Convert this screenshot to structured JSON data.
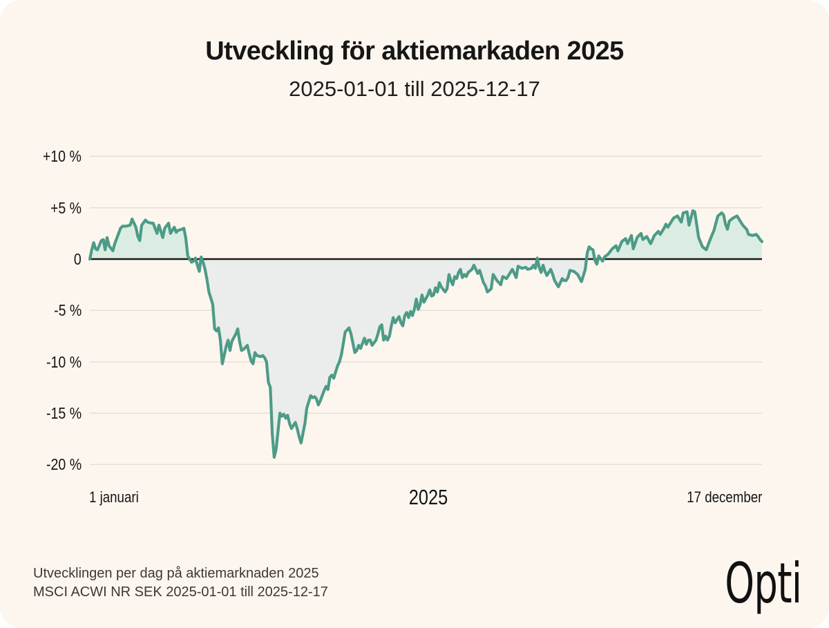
{
  "header": {
    "title": "Utveckling för aktiemarkaden 2025",
    "subtitle": "2025-01-01 till 2025-12-17"
  },
  "footer": {
    "caption_line1": "Utvecklingen per dag på aktiemarknaden 2025",
    "caption_line2": "MSCI ACWI NR SEK 2025-01-01 till 2025-12-17",
    "logo_text": "Opti"
  },
  "chart_data": {
    "type": "line",
    "title": "Utveckling för aktiemarkaden 2025",
    "subtitle": "2025-01-01 till 2025-12-17",
    "x_axis": {
      "labels": {
        "start": "1 januari",
        "center": "2025",
        "end": "17 december"
      },
      "start_date": "2025-01-01",
      "end_date": "2025-12-17",
      "x_unit": "day_index",
      "x_range": [
        0,
        350
      ]
    },
    "y_axis": {
      "unit": "%",
      "ticks": [
        {
          "label": "+10 %",
          "value": 10
        },
        {
          "label": "+5 %",
          "value": 5
        },
        {
          "label": "0",
          "value": 0
        },
        {
          "label": "-5 %",
          "value": -5
        },
        {
          "label": "-10 %",
          "value": -10
        },
        {
          "label": "-15 %",
          "value": -15
        },
        {
          "label": "-20 %",
          "value": -20
        }
      ],
      "ylim": [
        -21.5,
        11.5
      ]
    },
    "grid": "horizontal",
    "legend": "none",
    "colors": {
      "line": "#4d9b87",
      "fill_above_zero": "#d8ece2",
      "fill_below_zero": "#e8eceb",
      "grid": "#e7ddd5",
      "zero_line": "#1a1a1a",
      "card_background": "#fdf6ef",
      "text": "#161616",
      "caption_text": "#3b3835"
    },
    "series": [
      {
        "name": "MSCI ACWI NR SEK",
        "points": [
          [
            0,
            0
          ],
          [
            1,
            0.9
          ],
          [
            2,
            1.6
          ],
          [
            3,
            1
          ],
          [
            4,
            0.9
          ],
          [
            6,
            1.8
          ],
          [
            7,
            1.9
          ],
          [
            8,
            0.9
          ],
          [
            9,
            2.1
          ],
          [
            10,
            1.3
          ],
          [
            12,
            0.8
          ],
          [
            13,
            1.5
          ],
          [
            14,
            2
          ],
          [
            16,
            3
          ],
          [
            17,
            3.2
          ],
          [
            19,
            3.2
          ],
          [
            21,
            3.3
          ],
          [
            22,
            3.9
          ],
          [
            24,
            3.1
          ],
          [
            25,
            2.2
          ],
          [
            26,
            1.8
          ],
          [
            27,
            3.3
          ],
          [
            29,
            3.8
          ],
          [
            30,
            3.6
          ],
          [
            32,
            3.5
          ],
          [
            33,
            3.5
          ],
          [
            35,
            2.5
          ],
          [
            36,
            3.3
          ],
          [
            38,
            2.1
          ],
          [
            39,
            3
          ],
          [
            41,
            3.5
          ],
          [
            42,
            2.5
          ],
          [
            44,
            3.1
          ],
          [
            45,
            2.6
          ],
          [
            46,
            2.8
          ],
          [
            48,
            2.9
          ],
          [
            49,
            3
          ],
          [
            50,
            2
          ],
          [
            51,
            0.3
          ],
          [
            53,
            -0.3
          ],
          [
            54,
            -0.2
          ],
          [
            55,
            0.1
          ],
          [
            56,
            -0.6
          ],
          [
            57,
            -1.2
          ],
          [
            58,
            0.2
          ],
          [
            59,
            -0.3
          ],
          [
            60,
            -1
          ],
          [
            61,
            -2
          ],
          [
            62,
            -3.2
          ],
          [
            64,
            -4.4
          ],
          [
            65,
            -6.8
          ],
          [
            66,
            -7
          ],
          [
            67,
            -6.7
          ],
          [
            68,
            -7.9
          ],
          [
            69,
            -10.2
          ],
          [
            71,
            -8.5
          ],
          [
            72,
            -7.9
          ],
          [
            73,
            -8.9
          ],
          [
            74,
            -8
          ],
          [
            76,
            -7.3
          ],
          [
            77,
            -6.8
          ],
          [
            78,
            -8
          ],
          [
            79,
            -8.9
          ],
          [
            80,
            -8.8
          ],
          [
            82,
            -8.4
          ],
          [
            83,
            -9.2
          ],
          [
            84,
            -9.9
          ],
          [
            85,
            -10.2
          ],
          [
            86,
            -9.1
          ],
          [
            87,
            -9.4
          ],
          [
            89,
            -9.5
          ],
          [
            90,
            -9.4
          ],
          [
            91,
            -9.6
          ],
          [
            92,
            -10
          ],
          [
            93,
            -12
          ],
          [
            94,
            -12.5
          ],
          [
            95,
            -17
          ],
          [
            96,
            -19.3
          ],
          [
            97,
            -18.5
          ],
          [
            99,
            -15
          ],
          [
            100,
            -15.3
          ],
          [
            101,
            -15.1
          ],
          [
            102,
            -15.5
          ],
          [
            103,
            -15.2
          ],
          [
            104,
            -16
          ],
          [
            105,
            -16.5
          ],
          [
            106,
            -16.2
          ],
          [
            107,
            -15.9
          ],
          [
            108,
            -16.5
          ],
          [
            109,
            -17.3
          ],
          [
            110,
            -17.9
          ],
          [
            112,
            -16
          ],
          [
            113,
            -14.5
          ],
          [
            114,
            -13.9
          ],
          [
            115,
            -13.3
          ],
          [
            116,
            -13.5
          ],
          [
            117,
            -13.4
          ],
          [
            118,
            -13.6
          ],
          [
            119,
            -14.2
          ],
          [
            120,
            -13.8
          ],
          [
            122,
            -12.8
          ],
          [
            123,
            -12.4
          ],
          [
            124,
            -12.7
          ],
          [
            125,
            -11.5
          ],
          [
            126,
            -11.3
          ],
          [
            127,
            -11.6
          ],
          [
            128,
            -11
          ],
          [
            129,
            -10.4
          ],
          [
            130,
            -10
          ],
          [
            131,
            -9.3
          ],
          [
            132,
            -8.2
          ],
          [
            133,
            -7.1
          ],
          [
            135,
            -6.7
          ],
          [
            136,
            -7.3
          ],
          [
            137,
            -8.2
          ],
          [
            138,
            -9.1
          ],
          [
            139,
            -8.9
          ],
          [
            140,
            -8.4
          ],
          [
            141,
            -8.7
          ],
          [
            142,
            -8.2
          ],
          [
            143,
            -7.7
          ],
          [
            144,
            -8.3
          ],
          [
            145,
            -7.9
          ],
          [
            146,
            -7.9
          ],
          [
            147,
            -8.4
          ],
          [
            149,
            -7.9
          ],
          [
            150,
            -7.3
          ],
          [
            151,
            -6.6
          ],
          [
            152,
            -6.4
          ],
          [
            153,
            -7.9
          ],
          [
            154,
            -7.5
          ],
          [
            155,
            -7.9
          ],
          [
            156,
            -7.5
          ],
          [
            157,
            -6.5
          ],
          [
            158,
            -5.7
          ],
          [
            159,
            -6.2
          ],
          [
            160,
            -5.9
          ],
          [
            161,
            -5.6
          ],
          [
            162,
            -6.2
          ],
          [
            163,
            -6.5
          ],
          [
            164,
            -5.5
          ],
          [
            165,
            -5.2
          ],
          [
            166,
            -5.7
          ],
          [
            167,
            -5.1
          ],
          [
            168,
            -5.5
          ],
          [
            169,
            -4.9
          ],
          [
            170,
            -3.9
          ],
          [
            171,
            -4.9
          ],
          [
            172,
            -4.4
          ],
          [
            173,
            -3.5
          ],
          [
            174,
            -4.2
          ],
          [
            176,
            -3.5
          ],
          [
            177,
            -3
          ],
          [
            178,
            -3.6
          ],
          [
            179,
            -3.5
          ],
          [
            180,
            -2.8
          ],
          [
            181,
            -3.2
          ],
          [
            182,
            -2.3
          ],
          [
            183,
            -2.7
          ],
          [
            185,
            -3.2
          ],
          [
            186,
            -2.9
          ],
          [
            187,
            -1.5
          ],
          [
            188,
            -2.1
          ],
          [
            189,
            -2.5
          ],
          [
            190,
            -1.7
          ],
          [
            191,
            -1.9
          ],
          [
            192,
            -1.3
          ],
          [
            193,
            -1
          ],
          [
            194,
            -1.8
          ],
          [
            195,
            -1.5
          ],
          [
            196,
            -1.7
          ],
          [
            197,
            -1.3
          ],
          [
            199,
            -1
          ],
          [
            200,
            -0.6
          ],
          [
            201,
            -1
          ],
          [
            202,
            -1.4
          ],
          [
            203,
            -1.1
          ],
          [
            204,
            -1.7
          ],
          [
            205,
            -2.3
          ],
          [
            206,
            -2.6
          ],
          [
            207,
            -3.2
          ],
          [
            209,
            -2.9
          ],
          [
            210,
            -1.5
          ],
          [
            212,
            -2.1
          ],
          [
            214,
            -2.5
          ],
          [
            215,
            -1.7
          ],
          [
            217,
            -1.9
          ],
          [
            219,
            -1.3
          ],
          [
            220,
            -1
          ],
          [
            222,
            -1.8
          ],
          [
            223,
            -0.7
          ],
          [
            225,
            -0.9
          ],
          [
            227,
            -0.8
          ],
          [
            228,
            -1
          ],
          [
            230,
            -0.9
          ],
          [
            231,
            -0.6
          ],
          [
            232,
            -0.9
          ],
          [
            233,
            0.1
          ],
          [
            234,
            -0.8
          ],
          [
            235,
            -1.3
          ],
          [
            236,
            -0.6
          ],
          [
            237,
            -1.2
          ],
          [
            238,
            -1.6
          ],
          [
            240,
            -1
          ],
          [
            241,
            -1.5
          ],
          [
            242,
            -2.1
          ],
          [
            244,
            -2.7
          ],
          [
            246,
            -1.9
          ],
          [
            247,
            -2.1
          ],
          [
            248,
            -2.1
          ],
          [
            249,
            -1.8
          ],
          [
            250,
            -1.1
          ],
          [
            252,
            -1.2
          ],
          [
            254,
            -1.5
          ],
          [
            256,
            -2.2
          ],
          [
            258,
            -1
          ],
          [
            259,
            0.6
          ],
          [
            260,
            1.2
          ],
          [
            261,
            1
          ],
          [
            262,
            0.9
          ],
          [
            263,
            -0.1
          ],
          [
            264,
            -0.5
          ],
          [
            265,
            0.3
          ],
          [
            267,
            -0.2
          ],
          [
            268,
            0.2
          ],
          [
            270,
            0.5
          ],
          [
            272,
            1
          ],
          [
            274,
            1.3
          ],
          [
            275,
            0.8
          ],
          [
            277,
            1.7
          ],
          [
            279,
            2
          ],
          [
            280,
            1.5
          ],
          [
            282,
            2.3
          ],
          [
            283,
            1
          ],
          [
            285,
            2.1
          ],
          [
            287,
            2.5
          ],
          [
            288,
            1.9
          ],
          [
            290,
            2.2
          ],
          [
            292,
            1.5
          ],
          [
            294,
            2.3
          ],
          [
            296,
            2.7
          ],
          [
            297,
            2.4
          ],
          [
            299,
            3
          ],
          [
            300,
            3.4
          ],
          [
            301,
            3.1
          ],
          [
            303,
            3.7
          ],
          [
            304,
            4
          ],
          [
            306,
            4.2
          ],
          [
            308,
            3.6
          ],
          [
            309,
            4.5
          ],
          [
            311,
            4.6
          ],
          [
            312,
            3.3
          ],
          [
            314,
            4.7
          ],
          [
            315,
            4.6
          ],
          [
            317,
            2.1
          ],
          [
            319,
            1.2
          ],
          [
            321,
            0.9
          ],
          [
            323,
            1.9
          ],
          [
            325,
            2.8
          ],
          [
            327,
            4.2
          ],
          [
            329,
            4.5
          ],
          [
            330,
            4.3
          ],
          [
            331,
            3.4
          ],
          [
            332,
            2.9
          ],
          [
            333,
            3.7
          ],
          [
            335,
            4
          ],
          [
            337,
            4.2
          ],
          [
            339,
            3.6
          ],
          [
            340,
            3.3
          ],
          [
            342,
            2.9
          ],
          [
            343,
            2.4
          ],
          [
            345,
            2.3
          ],
          [
            347,
            2.4
          ],
          [
            348,
            2.2
          ],
          [
            349,
            1.9
          ],
          [
            350,
            1.7
          ]
        ]
      }
    ]
  }
}
